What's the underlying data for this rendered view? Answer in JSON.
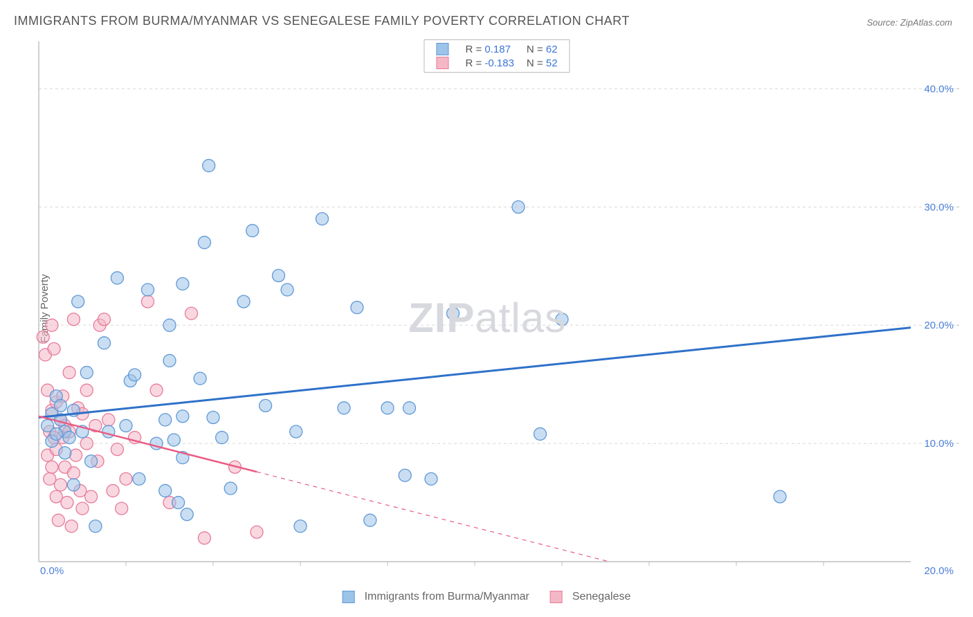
{
  "title": "IMMIGRANTS FROM BURMA/MYANMAR VS SENEGALESE FAMILY POVERTY CORRELATION CHART",
  "source": "Source: ZipAtlas.com",
  "ylabel": "Family Poverty",
  "watermark": {
    "zip": "ZIP",
    "atlas": "atlas"
  },
  "chart": {
    "type": "scatter",
    "xlim": [
      0,
      20
    ],
    "ylim": [
      0,
      44
    ],
    "x_ticks": [
      0,
      20
    ],
    "x_tick_labels": [
      "0.0%",
      "20.0%"
    ],
    "y_ticks": [
      10,
      20,
      30,
      40
    ],
    "y_tick_labels": [
      "10.0%",
      "20.0%",
      "30.0%",
      "40.0%"
    ],
    "grid_color": "#d8d8d8",
    "axis_color": "#bfbfbf",
    "background_color": "#ffffff",
    "marker_radius": 9,
    "marker_stroke_width": 1.3,
    "series": [
      {
        "name": "Immigrants from Burma/Myanmar",
        "key": "burma",
        "fill": "#9cc3e8",
        "stroke": "#5f98d6",
        "fill_opacity": 0.55,
        "r_label": "R = ",
        "r_value": "0.187",
        "n_label": "N = ",
        "n_value": "62",
        "trend": {
          "x1": 0,
          "y1": 12.2,
          "x2": 20,
          "y2": 19.8,
          "color": "#2e71c9",
          "width": 3,
          "solid_until_x": 20
        },
        "points": [
          [
            0.2,
            11.5
          ],
          [
            0.3,
            10.2
          ],
          [
            0.3,
            12.5
          ],
          [
            0.4,
            14.0
          ],
          [
            0.5,
            12.0
          ],
          [
            0.5,
            13.2
          ],
          [
            0.6,
            9.2
          ],
          [
            0.6,
            11.0
          ],
          [
            0.7,
            10.5
          ],
          [
            0.8,
            12.8
          ],
          [
            0.8,
            6.5
          ],
          [
            0.9,
            22.0
          ],
          [
            1.0,
            11.0
          ],
          [
            1.1,
            16.0
          ],
          [
            1.2,
            8.5
          ],
          [
            1.3,
            3.0
          ],
          [
            1.5,
            18.5
          ],
          [
            1.8,
            24.0
          ],
          [
            2.0,
            11.5
          ],
          [
            2.1,
            15.3
          ],
          [
            2.2,
            15.8
          ],
          [
            2.3,
            7.0
          ],
          [
            2.5,
            23.0
          ],
          [
            2.7,
            10.0
          ],
          [
            2.9,
            6.0
          ],
          [
            2.9,
            12.0
          ],
          [
            3.0,
            20.0
          ],
          [
            3.0,
            17.0
          ],
          [
            3.1,
            10.3
          ],
          [
            3.2,
            5.0
          ],
          [
            3.3,
            8.8
          ],
          [
            3.3,
            12.3
          ],
          [
            3.3,
            23.5
          ],
          [
            3.4,
            4.0
          ],
          [
            3.7,
            15.5
          ],
          [
            3.8,
            27.0
          ],
          [
            3.9,
            33.5
          ],
          [
            4.0,
            12.2
          ],
          [
            4.2,
            10.5
          ],
          [
            4.4,
            6.2
          ],
          [
            4.7,
            22.0
          ],
          [
            4.9,
            28.0
          ],
          [
            5.2,
            13.2
          ],
          [
            5.5,
            24.2
          ],
          [
            5.7,
            23.0
          ],
          [
            5.9,
            11.0
          ],
          [
            6.0,
            3.0
          ],
          [
            6.5,
            29.0
          ],
          [
            7.0,
            13.0
          ],
          [
            7.3,
            21.5
          ],
          [
            7.6,
            3.5
          ],
          [
            8.0,
            13.0
          ],
          [
            8.4,
            7.3
          ],
          [
            8.5,
            13.0
          ],
          [
            9.0,
            7.0
          ],
          [
            9.5,
            21.0
          ],
          [
            11.0,
            30.0
          ],
          [
            11.5,
            10.8
          ],
          [
            12.0,
            20.5
          ],
          [
            17.0,
            5.5
          ],
          [
            1.6,
            11.0
          ],
          [
            0.4,
            10.8
          ]
        ]
      },
      {
        "name": "Senegalese",
        "key": "senegalese",
        "fill": "#f4b7c6",
        "stroke": "#e77a99",
        "fill_opacity": 0.55,
        "r_label": "R = ",
        "r_value": "-0.183",
        "n_label": "N = ",
        "n_value": "52",
        "trend": {
          "x1": 0,
          "y1": 12.3,
          "x2": 20,
          "y2": -6.5,
          "color": "#e95d85",
          "width": 2.5,
          "solid_until_x": 5.0
        },
        "points": [
          [
            0.1,
            19.0
          ],
          [
            0.15,
            17.5
          ],
          [
            0.2,
            9.0
          ],
          [
            0.2,
            14.5
          ],
          [
            0.25,
            11.0
          ],
          [
            0.25,
            7.0
          ],
          [
            0.3,
            8.0
          ],
          [
            0.3,
            12.8
          ],
          [
            0.3,
            20.0
          ],
          [
            0.35,
            10.5
          ],
          [
            0.35,
            18.0
          ],
          [
            0.4,
            5.5
          ],
          [
            0.4,
            9.5
          ],
          [
            0.4,
            13.5
          ],
          [
            0.45,
            3.5
          ],
          [
            0.5,
            12.0
          ],
          [
            0.5,
            6.5
          ],
          [
            0.55,
            10.5
          ],
          [
            0.55,
            14.0
          ],
          [
            0.6,
            8.0
          ],
          [
            0.6,
            11.5
          ],
          [
            0.65,
            5.0
          ],
          [
            0.7,
            16.0
          ],
          [
            0.7,
            11.0
          ],
          [
            0.75,
            3.0
          ],
          [
            0.8,
            20.5
          ],
          [
            0.8,
            7.5
          ],
          [
            0.85,
            9.0
          ],
          [
            0.9,
            13.0
          ],
          [
            0.95,
            6.0
          ],
          [
            1.0,
            12.5
          ],
          [
            1.0,
            4.5
          ],
          [
            1.1,
            10.0
          ],
          [
            1.1,
            14.5
          ],
          [
            1.2,
            5.5
          ],
          [
            1.3,
            11.5
          ],
          [
            1.4,
            20.0
          ],
          [
            1.35,
            8.5
          ],
          [
            1.5,
            20.5
          ],
          [
            1.6,
            12.0
          ],
          [
            1.7,
            6.0
          ],
          [
            1.8,
            9.5
          ],
          [
            1.9,
            4.5
          ],
          [
            2.0,
            7.0
          ],
          [
            2.2,
            10.5
          ],
          [
            2.5,
            22.0
          ],
          [
            2.7,
            14.5
          ],
          [
            3.0,
            5.0
          ],
          [
            3.5,
            21.0
          ],
          [
            3.8,
            2.0
          ],
          [
            4.5,
            8.0
          ],
          [
            5.0,
            2.5
          ]
        ]
      }
    ]
  },
  "legend_bottom": [
    {
      "label": "Immigrants from Burma/Myanmar",
      "fill": "#9cc3e8",
      "stroke": "#5f98d6"
    },
    {
      "label": "Senegalese",
      "fill": "#f4b7c6",
      "stroke": "#e77a99"
    }
  ]
}
